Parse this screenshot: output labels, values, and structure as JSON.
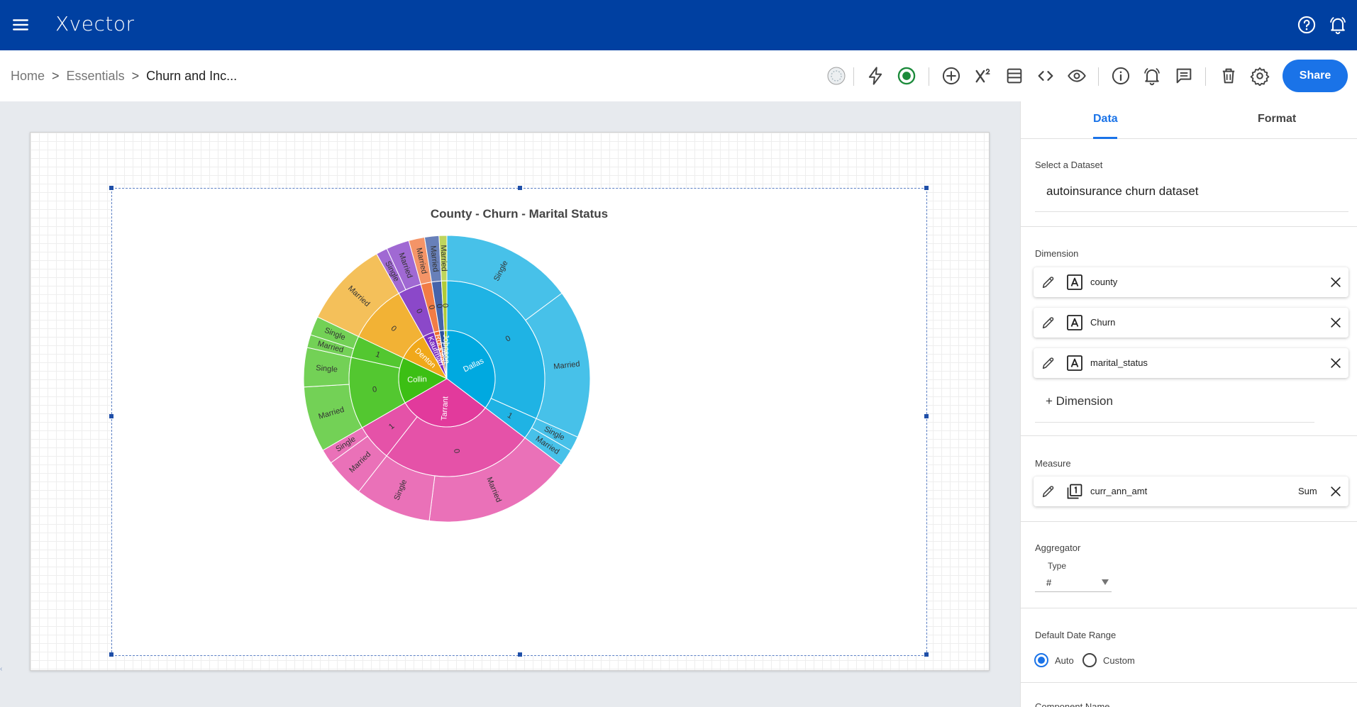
{
  "app": {
    "title": "Xvector",
    "brand_color": "#0040a1",
    "accent_color": "#1a73e8"
  },
  "topbar_icons": [
    "menu-icon",
    "help-icon",
    "notifications-icon"
  ],
  "breadcrumb": {
    "items": [
      "Home",
      "Essentials",
      "Churn and Inc..."
    ],
    "separator": ">"
  },
  "toolbar": {
    "icons": [
      "status-indicator-icon",
      "lightning-icon",
      "record-icon",
      "add-icon",
      "formula-icon",
      "layout-icon",
      "code-icon",
      "preview-icon",
      "info-icon",
      "alert-icon",
      "comment-icon",
      "delete-icon",
      "settings-icon"
    ],
    "share_label": "Share"
  },
  "panel": {
    "tabs": [
      "Data",
      "Format"
    ],
    "active_tab": "Data",
    "dataset_label": "Select a Dataset",
    "dataset_value": "autoinsurance churn dataset",
    "dimension_label": "Dimension",
    "dimensions": [
      {
        "name": "county",
        "type_icon": "text-type-icon"
      },
      {
        "name": "Churn",
        "type_icon": "text-type-icon"
      },
      {
        "name": "marital_status",
        "type_icon": "text-type-icon"
      }
    ],
    "add_dimension_label": "+ Dimension",
    "measure_label": "Measure",
    "measure": {
      "name": "curr_ann_amt",
      "aggregation": "Sum",
      "type_icon": "number-type-icon"
    },
    "aggregator_label": "Aggregator",
    "aggregator_type_label": "Type",
    "aggregator_type_value": "#",
    "date_range_label": "Default Date Range",
    "date_range_options": [
      "Auto",
      "Custom"
    ],
    "date_range_selected": "Auto",
    "component_name_label": "Component Name"
  },
  "chart_data": {
    "type": "sunburst",
    "title": "County - Churn - Marital Status",
    "levels": [
      "county",
      "Churn",
      "marital_status"
    ],
    "hierarchy": [
      {
        "name": "Dallas",
        "value": 0.3532,
        "color": "#00a9e0",
        "children": [
          {
            "name": "0",
            "value": 0.3169,
            "children": [
              {
                "name": "Single",
                "value": 0.1483
              },
              {
                "name": "Married",
                "value": 0.1686
              }
            ]
          },
          {
            "name": "1",
            "value": 0.0363,
            "children": [
              {
                "name": "Single",
                "value": 0.0167
              },
              {
                "name": "Married",
                "value": 0.0196
              }
            ]
          }
        ]
      },
      {
        "name": "Tarrant",
        "value": 0.3134,
        "color": "#e23a9c",
        "children": [
          {
            "name": "0",
            "value": 0.2523,
            "children": [
              {
                "name": "Married",
                "value": 0.1665
              },
              {
                "name": "Single",
                "value": 0.0858
              }
            ]
          },
          {
            "name": "1",
            "value": 0.0611,
            "children": [
              {
                "name": "Married",
                "value": 0.0446
              },
              {
                "name": "Single",
                "value": 0.0165
              }
            ]
          }
        ]
      },
      {
        "name": "Collin",
        "value": 0.1543,
        "color": "#3cbf14",
        "children": [
          {
            "name": "0",
            "value": 0.1184,
            "children": [
              {
                "name": "Married",
                "value": 0.0741
              },
              {
                "name": "Single",
                "value": 0.0443
              }
            ]
          },
          {
            "name": "1",
            "value": 0.0359,
            "children": [
              {
                "name": "Married",
                "value": 0.0146
              },
              {
                "name": "Single",
                "value": 0.0213
              }
            ]
          }
        ]
      },
      {
        "name": "Denton",
        "value": 0.0974,
        "color": "#f0a81a",
        "children": [
          {
            "name": "0",
            "value": 0.0974,
            "children": [
              {
                "name": "Married",
                "value": 0.0974
              }
            ]
          }
        ]
      },
      {
        "name": "Kaufman",
        "value": 0.0388,
        "color": "#7b2fc2",
        "children": [
          {
            "name": "0",
            "value": 0.0388,
            "children": [
              {
                "name": "Single",
                "value": 0.0128
              },
              {
                "name": "Married",
                "value": 0.026
              }
            ]
          }
        ]
      },
      {
        "name": "Rockwall",
        "value": 0.0179,
        "color": "#f06a2c",
        "children": [
          {
            "name": "0",
            "value": 0.0179,
            "children": [
              {
                "name": "Married",
                "value": 0.0179
              }
            ]
          }
        ]
      },
      {
        "name": "Ellis",
        "value": 0.0162,
        "color": "#2d4f9e",
        "children": [
          {
            "name": "0",
            "value": 0.0162,
            "children": [
              {
                "name": "Married",
                "value": 0.0162
              }
            ]
          }
        ]
      },
      {
        "name": "Johnson",
        "value": 0.0088,
        "color": "#a6c41c",
        "children": [
          {
            "name": "0",
            "value": 0.0088,
            "children": [
              {
                "name": "Married",
                "value": 0.0088
              }
            ]
          }
        ]
      }
    ]
  }
}
